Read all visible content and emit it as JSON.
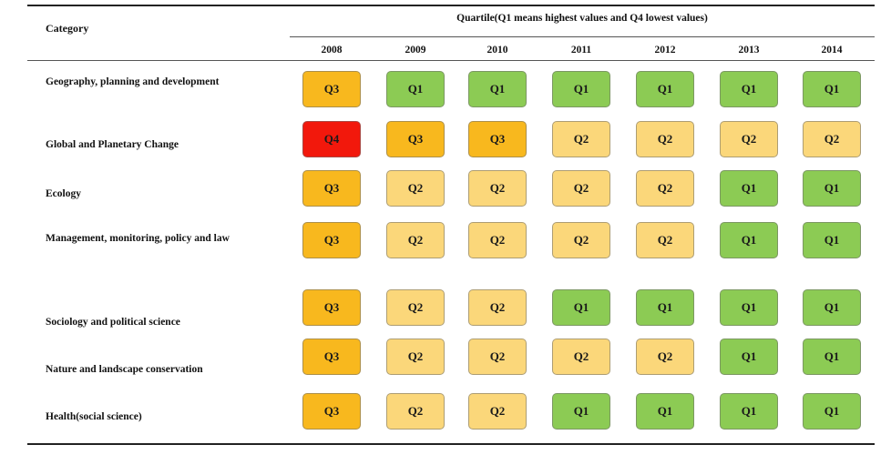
{
  "table": {
    "category_header": "Category",
    "group_header": "Quartile(Q1 means highest values and Q4 lowest values)",
    "years": [
      "2008",
      "2009",
      "2010",
      "2011",
      "2012",
      "2013",
      "2014"
    ],
    "rows": [
      {
        "label": "Geography, planning and development",
        "values": [
          "Q3",
          "Q1",
          "Q1",
          "Q1",
          "Q1",
          "Q1",
          "Q1"
        ]
      },
      {
        "label": "Global and Planetary Change",
        "values": [
          "Q4",
          "Q3",
          "Q3",
          "Q2",
          "Q2",
          "Q2",
          "Q2"
        ]
      },
      {
        "label": "Ecology",
        "values": [
          "Q3",
          "Q2",
          "Q2",
          "Q2",
          "Q2",
          "Q1",
          "Q1"
        ]
      },
      {
        "label": "Management, monitoring, policy and law",
        "values": [
          "Q3",
          "Q2",
          "Q2",
          "Q2",
          "Q2",
          "Q1",
          "Q1"
        ]
      },
      {
        "label": "Sociology and political science",
        "values": [
          "Q3",
          "Q2",
          "Q2",
          "Q1",
          "Q1",
          "Q1",
          "Q1"
        ]
      },
      {
        "label": "Nature and landscape conservation",
        "values": [
          "Q3",
          "Q2",
          "Q2",
          "Q2",
          "Q2",
          "Q1",
          "Q1"
        ]
      },
      {
        "label": "Health(social science)",
        "values": [
          "Q3",
          "Q2",
          "Q2",
          "Q1",
          "Q1",
          "Q1",
          "Q1"
        ]
      }
    ],
    "quartile_colors": {
      "Q1": "#8ccb54",
      "Q2": "#fbd77a",
      "Q3": "#f8b81e",
      "Q4": "#f2180c"
    }
  }
}
